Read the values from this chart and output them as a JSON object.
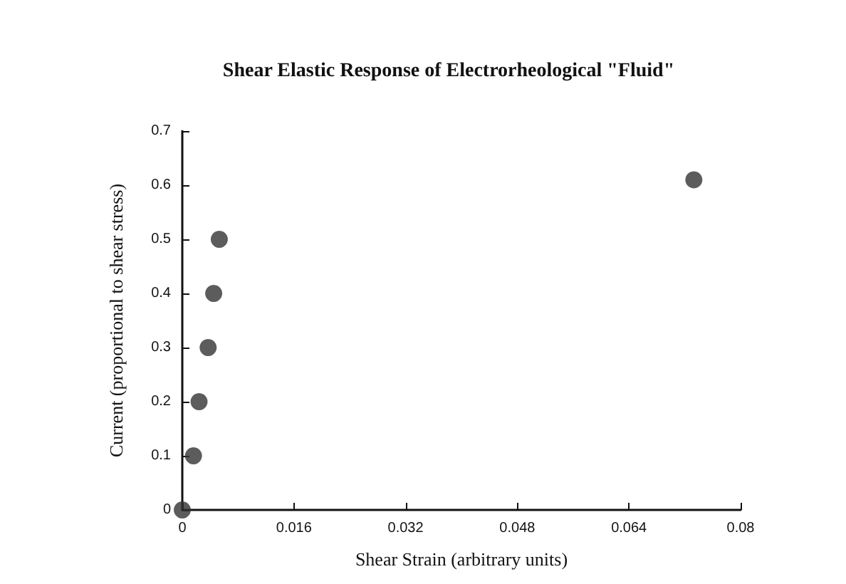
{
  "chart_data": {
    "type": "scatter",
    "title": "Shear Elastic Response of Electrorheological \"Fluid\"",
    "xlabel": "Shear Strain (arbitrary units)",
    "ylabel": "Current (proportional to shear stress)",
    "x": [
      0,
      0.0016,
      0.0024,
      0.0037,
      0.0045,
      0.0053,
      0.0733
    ],
    "values": [
      0,
      0.1,
      0.2,
      0.3,
      0.4,
      0.5,
      0.61
    ],
    "color": "#333333",
    "marker": "circle",
    "xlim": [
      0,
      0.08
    ],
    "xticks": [
      0,
      0.016,
      0.032,
      0.048,
      0.064,
      0.08
    ],
    "ylim": [
      0,
      0.7
    ],
    "yticks": [
      0,
      0.1,
      0.2,
      0.3,
      0.4,
      0.5,
      0.6,
      0.7
    ],
    "grid": false
  }
}
